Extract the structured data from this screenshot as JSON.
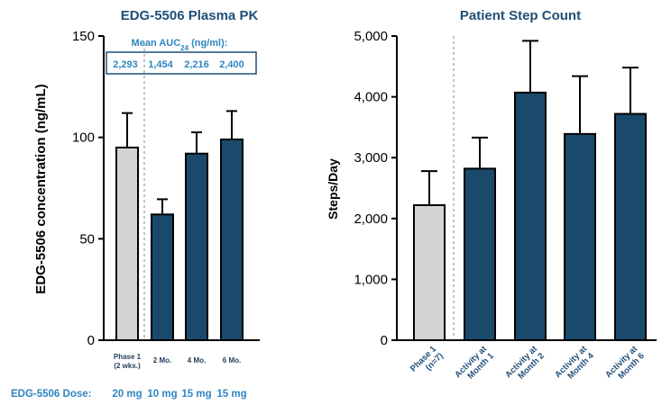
{
  "colors": {
    "title": "#1f4e79",
    "bar_phase1": "#d4d4d4",
    "bar_main": "#1a4a6b",
    "accent_text": "#2e86c1",
    "category_text": "#1f3c5a"
  },
  "chart_data": [
    {
      "type": "bar",
      "title": "EDG-5506 Plasma PK",
      "xlabel": "",
      "ylabel": "EDG-5506 concentration (ng/mL)",
      "ylim": [
        0,
        150
      ],
      "yticks": [
        "0",
        "50",
        "100",
        "150"
      ],
      "categories": [
        "Phase 1 (2 wks.)",
        "2 Mo.",
        "4 Mo.",
        "6 Mo."
      ],
      "category_lines": [
        [
          "Phase 1",
          "(2 wks.)"
        ],
        [
          "2 Mo."
        ],
        [
          "4 Mo."
        ],
        [
          "6 Mo."
        ]
      ],
      "values": [
        95,
        62,
        92,
        99
      ],
      "error_upper": [
        112,
        69.5,
        102.5,
        113
      ],
      "auc_box": {
        "label_main": "Mean AUC",
        "label_sub": "24",
        "label_rest": " (ng/ml):",
        "values": [
          "2,293",
          "1,454",
          "2,216",
          "2,400"
        ]
      },
      "dose_label": "EDG-5506 Dose:",
      "doses": [
        "20 mg",
        "10 mg",
        "15 mg",
        "15 mg"
      ]
    },
    {
      "type": "bar",
      "title": "Patient Step Count",
      "xlabel": "",
      "ylabel": "Steps/Day",
      "ylim": [
        0,
        5000
      ],
      "yticks": [
        "0",
        "1,000",
        "2,000",
        "3,000",
        "4,000",
        "5,000"
      ],
      "categories": [
        "Phase 1 (n=7)",
        "Activity at Month 1",
        "Activity at Month 2",
        "Activity at Month 4",
        "Activity at Month 6"
      ],
      "category_lines": [
        [
          "Phase 1",
          "(n=7)"
        ],
        [
          "Activity at",
          "Month 1"
        ],
        [
          "Activity at",
          "Month 2"
        ],
        [
          "Activity at",
          "Month 4"
        ],
        [
          "Activity at",
          "Month 6"
        ]
      ],
      "values": [
        2220,
        2820,
        4070,
        3390,
        3720
      ],
      "error_upper": [
        2780,
        3330,
        4920,
        4340,
        4480
      ]
    }
  ]
}
